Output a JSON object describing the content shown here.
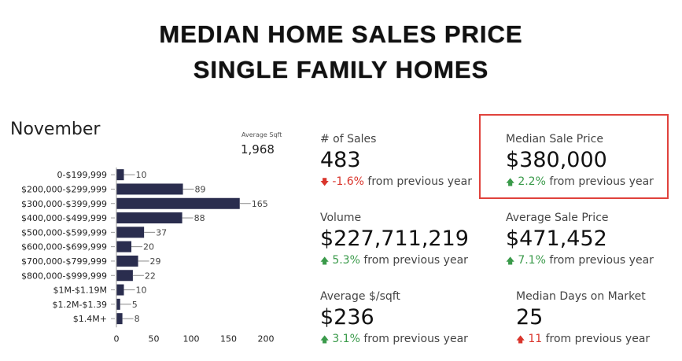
{
  "title_line1": "MEDIAN HOME SALES PRICE",
  "title_line2": "SINGLE FAMILY HOMES",
  "month": "November",
  "average_sqft": {
    "label": "Average Sqft",
    "value": "1,968"
  },
  "colors": {
    "bar": "#2a2d4e",
    "up": "#3a9a4a",
    "down": "#d9342b",
    "highlight": "#e0423c"
  },
  "chart_data": {
    "type": "bar",
    "orientation": "horizontal",
    "categories": [
      "0-$199,999",
      "$200,000-$299,999",
      "$300,000-$399,999",
      "$400,000-$499,999",
      "$500,000-$599,999",
      "$600,000-$699,999",
      "$700,000-$799,999",
      "$800,000-$999,999",
      "$1M-$1.19M",
      "$1.2M-$1.39",
      "$1.4M+"
    ],
    "values": [
      10,
      89,
      165,
      88,
      37,
      20,
      29,
      22,
      10,
      5,
      8
    ],
    "xticks": [
      0,
      50,
      100,
      150,
      200
    ],
    "xlim": [
      0,
      200
    ],
    "title": "",
    "xlabel": "",
    "ylabel": "",
    "grid": false
  },
  "metrics": {
    "sales": {
      "label": "# of Sales",
      "value": "483",
      "pct": "-1.6%",
      "suffix": "from previous year",
      "direction": "down"
    },
    "median_price": {
      "label": "Median Sale Price",
      "value": "$380,000",
      "pct": "2.2%",
      "suffix": "from previous year",
      "direction": "up"
    },
    "volume": {
      "label": "Volume",
      "value": "$227,711,219",
      "pct": "5.3%",
      "suffix": "from previous year",
      "direction": "up"
    },
    "avg_price": {
      "label": "Average Sale Price",
      "value": "$471,452",
      "pct": "7.1%",
      "suffix": "from previous year",
      "direction": "up"
    },
    "avg_ppsf": {
      "label": "Average $/sqft",
      "value": "$236",
      "pct": "3.1%",
      "suffix": "from previous year",
      "direction": "up"
    },
    "median_dom": {
      "label": "Median Days on Market",
      "value": "25",
      "pct": "11",
      "suffix": "from previous year",
      "direction": "up-red"
    }
  }
}
